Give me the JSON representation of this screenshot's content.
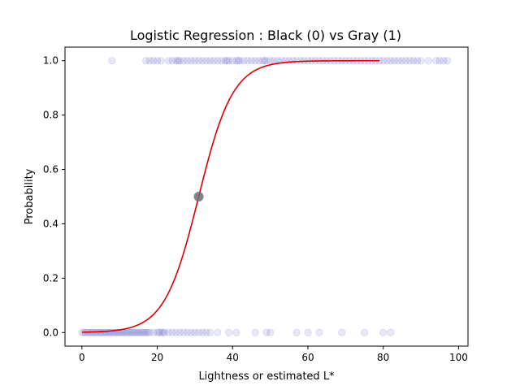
{
  "chart_data": {
    "type": "scatter",
    "title": "Logistic Regression : Black (0) vs Gray (1)",
    "xlabel": "Lightness or estimated L*",
    "ylabel": "Probability",
    "xlim": [
      -4.5,
      102.5
    ],
    "ylim": [
      -0.05,
      1.05
    ],
    "xticks": [
      0,
      20,
      40,
      60,
      80,
      100
    ],
    "yticks": [
      0.0,
      0.2,
      0.4,
      0.6,
      0.8,
      1.0
    ],
    "xtick_labels": [
      "0",
      "20",
      "40",
      "60",
      "80",
      "100"
    ],
    "ytick_labels": [
      "0.0",
      "0.2",
      "0.4",
      "0.6",
      "0.8",
      "1.0"
    ],
    "grid": false,
    "legend": "none",
    "points_color": "#0000aa",
    "curve_color": "#dd0000",
    "midpoint_color": "#707070",
    "series": [
      {
        "values_y": 1,
        "x": [
          8,
          17,
          18,
          19,
          20,
          21,
          23,
          24,
          25,
          25.5,
          26,
          27,
          28,
          29,
          30,
          31,
          32,
          33,
          34,
          35,
          36,
          37,
          38,
          38.5,
          39,
          40,
          41,
          41.5,
          42,
          43,
          44,
          45,
          46,
          47,
          48,
          48.5,
          49,
          50,
          51,
          52,
          53,
          54,
          55,
          56,
          57,
          58,
          59,
          60,
          61,
          62,
          63,
          64,
          65,
          66,
          67,
          68,
          69,
          70,
          71,
          72,
          73,
          74,
          75,
          76,
          77,
          78,
          79,
          80,
          81,
          82,
          83,
          84,
          85,
          86,
          87,
          88,
          89,
          90,
          92,
          94,
          95,
          96,
          97
        ]
      },
      {
        "values_y": 0,
        "x": [
          0,
          0.5,
          1,
          1.5,
          2,
          2.5,
          3,
          3.5,
          4,
          4.5,
          5,
          5.5,
          6,
          6.5,
          7,
          7.5,
          8,
          8.5,
          9,
          9.5,
          10,
          10.5,
          11,
          11.5,
          12,
          12.5,
          13,
          13.5,
          14,
          14.5,
          15,
          15.5,
          16,
          16.5,
          17,
          17.5,
          18,
          19,
          20,
          20.5,
          21,
          21.5,
          22,
          23,
          24,
          25,
          26,
          27,
          28,
          29,
          30,
          31,
          32,
          33,
          34,
          36,
          39,
          41,
          46,
          49,
          50,
          57,
          60,
          63,
          69,
          75,
          80,
          82
        ]
      }
    ],
    "curve": {
      "x_start": 0,
      "x_end": 79,
      "midpoint_x": 31,
      "slope": 0.22
    },
    "midpoint": {
      "x": 31,
      "y": 0.5
    }
  }
}
